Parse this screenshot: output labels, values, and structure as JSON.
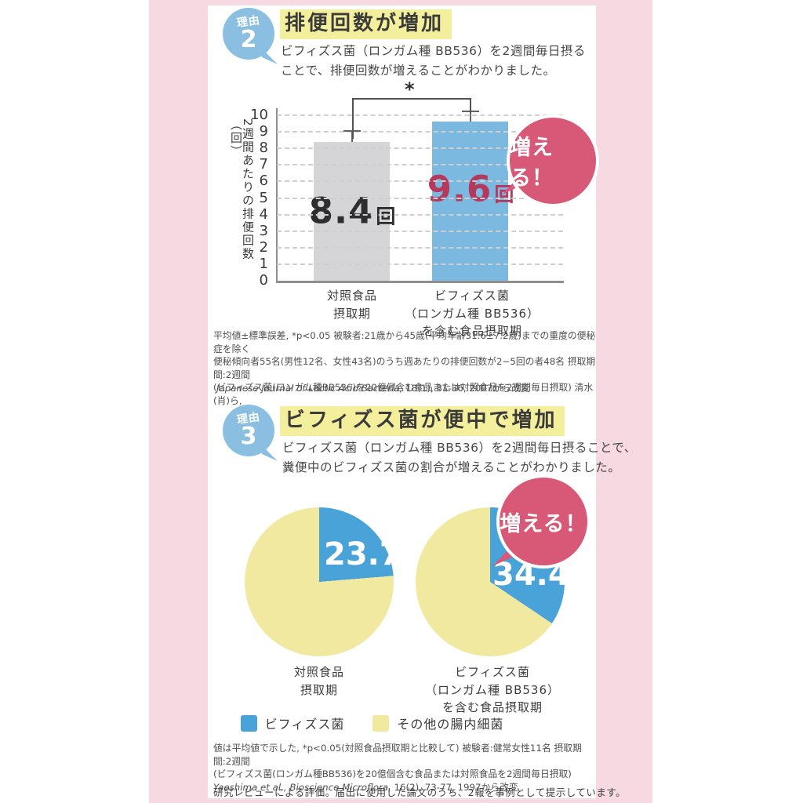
{
  "colors": {
    "frame_pink": "#f7d9e2",
    "badge_blue": "#8bbfe1",
    "highlight_yellow": "#f4ef9c",
    "bubble_pink": "#d85878",
    "value_red": "#b5395c",
    "bar_gray": "#d5d4d6",
    "bar_blue": "#7cb9e1",
    "pie_blue": "#49a3d8",
    "pie_yellow": "#f2e9a0"
  },
  "sections": [
    {
      "badge_label": "理由",
      "badge_number": "2",
      "title": "排便回数が増加",
      "description": "ビフィズス菌（ロンガム種 BB536）を2週間毎日摂る\nことで、排便回数が増えることがわかりました。",
      "footnote": "平均値±標準誤差, *p<0.05 被験者:21歳から45歳(平均年齢31.6±7.2歳)までの重度の便秘症を除く\n便秘傾向者55名(男性12名、女性43名)のうち週あたりの排便回数が2~5回の者48名 摂取期間:2週間\n(ビフィズス菌(ロンガム種BB536)を20億個含む食品または対照食品を2週間毎日摂取) 清水(肖)ら,",
      "citation_italic": "Japanese Journal of Lactic Acid Bacteria,",
      "citation_rest": " 18(1), 31-36, 2007から改変"
    },
    {
      "badge_label": "理由",
      "badge_number": "3",
      "title": "ビフィズス菌が便中で増加",
      "description": "ビフィズス菌（ロンガム種 BB536）を2週間毎日摂ることで、\n糞便中のビフィズス菌の割合が増えることがわかりました。",
      "footnote": "値は平均値で示した, *p<0.05(対照食品摂取期と比較して) 被験者:健常女性11名 摂取期間:2週間\n(ビフィズス菌(ロンガム種BB536)を20億個含む食品または対照食品を2週間毎日摂取)",
      "citation_italic": "Yaeshima et al., Bioscience Microflora,",
      "citation_rest": " 16(2), 73-77, 1997から改変"
    }
  ],
  "footer_note": "研究レビューによる評価。届出に使用した論文のうち、2報を事例として提示しています。",
  "chart_data": [
    {
      "type": "bar",
      "ylabel": "2週間あたりの排便回数（回）",
      "ylim": [
        0,
        10
      ],
      "ytick_step": 1,
      "grid": "dashed-horizontal",
      "categories": [
        "対照食品\n摂取期",
        "ビフィズス菌\n（ロンガム種 BB536）\nを含む食品摂取期"
      ],
      "values": [
        8.4,
        9.6
      ],
      "errors": [
        0.6,
        0.6
      ],
      "unit": "回",
      "bar_colors": [
        "#d5d4d6",
        "#7cb9e1"
      ],
      "significance_label": "*",
      "annotation_bubble": "増える！"
    },
    {
      "type": "pie",
      "pies": [
        {
          "label": "対照食品\n摂取期",
          "value_text": "23.7",
          "slices": [
            {
              "name": "ビフィズス菌",
              "value": 23.7
            },
            {
              "name": "その他の腸内細菌",
              "value": 76.3
            }
          ]
        },
        {
          "label": "ビフィズス菌\n（ロンガム種 BB536）\nを含む食品摂取期",
          "value_text": "34.4",
          "slices": [
            {
              "name": "ビフィズス菌",
              "value": 34.4
            },
            {
              "name": "その他の腸内細菌",
              "value": 65.6
            }
          ]
        }
      ],
      "percent_sign": "%",
      "legend": [
        {
          "label": "ビフィズス菌",
          "color": "#49a3d8"
        },
        {
          "label": "その他の腸内細菌",
          "color": "#f2e9a0"
        }
      ],
      "annotation_bubble": "増える！"
    }
  ]
}
